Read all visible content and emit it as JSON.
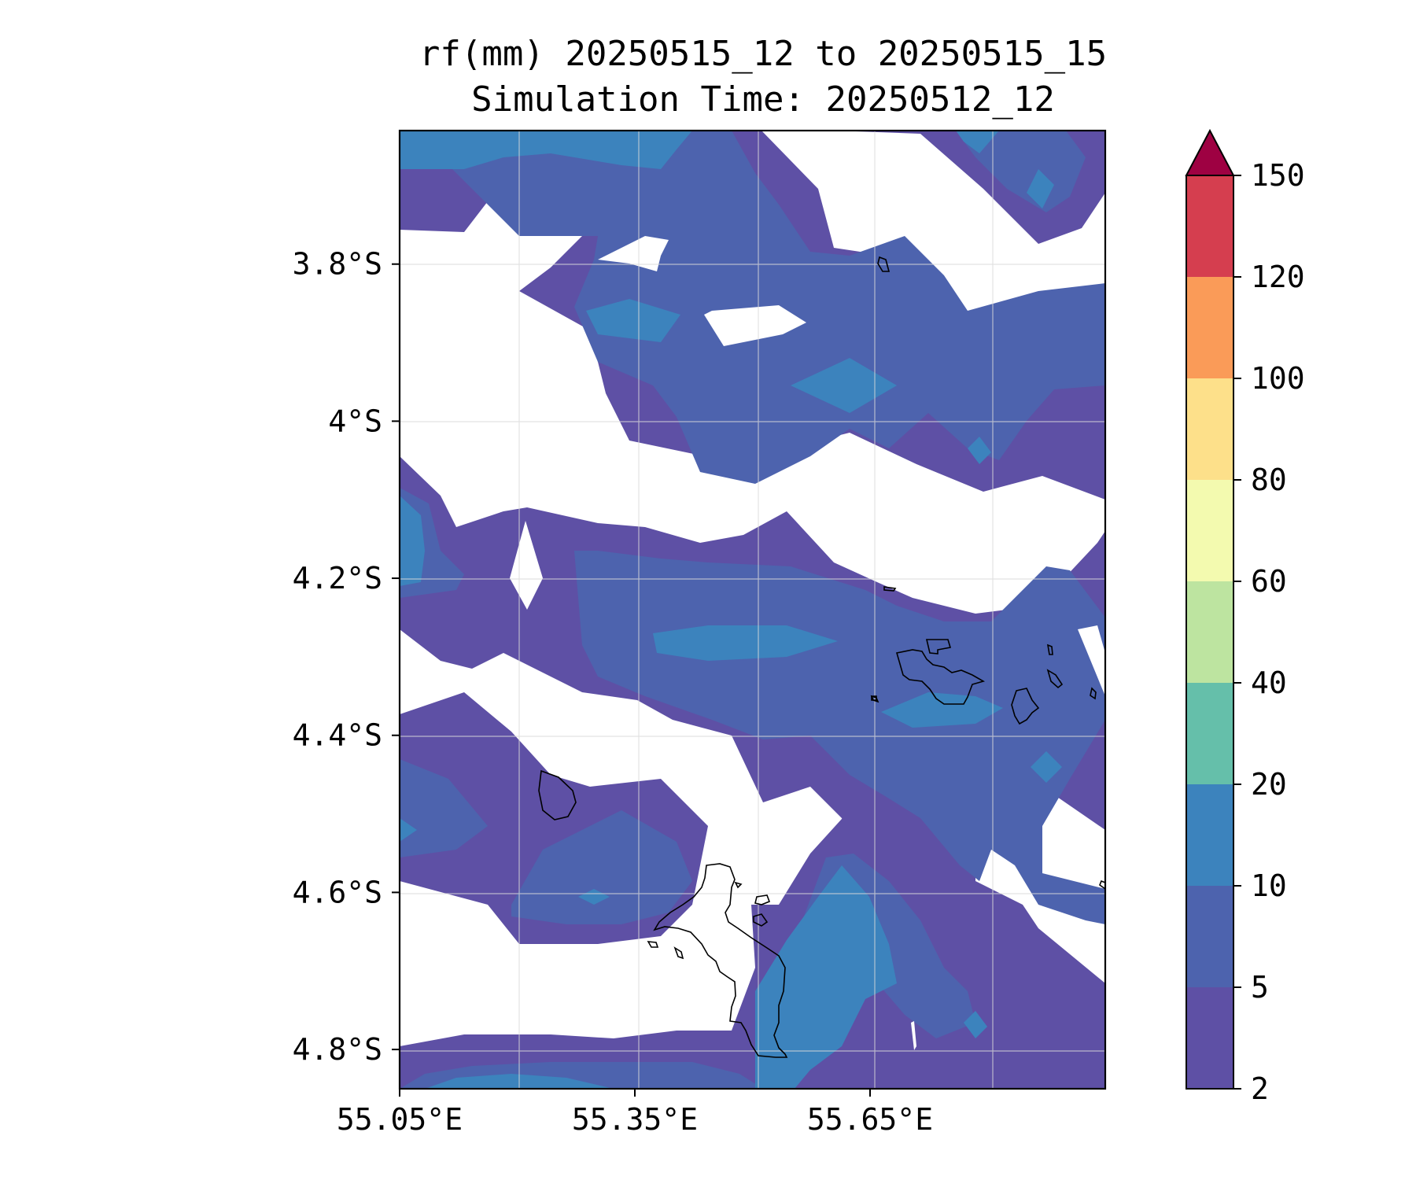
{
  "chart_data": {
    "type": "contourf",
    "title": "rf(mm) 20250515_12 to 20250515_15",
    "subtitle": "Simulation Time: 20250512_12",
    "xlabel": "",
    "ylabel": "",
    "xlim": [
      55.05,
      55.95
    ],
    "ylim": [
      -4.85,
      -3.63
    ],
    "x_ticks": [
      {
        "value": 55.05,
        "label": "55.05°E"
      },
      {
        "value": 55.35,
        "label": "55.35°E"
      },
      {
        "value": 55.65,
        "label": "55.65°E"
      }
    ],
    "y_ticks": [
      {
        "value": -3.8,
        "label": "3.8°S"
      },
      {
        "value": -4.0,
        "label": "4°S"
      },
      {
        "value": -4.2,
        "label": "4.2°S"
      },
      {
        "value": -4.4,
        "label": "4.4°S"
      },
      {
        "value": -4.6,
        "label": "4.6°S"
      },
      {
        "value": -4.8,
        "label": "4.8°S"
      }
    ],
    "grid": true,
    "colorbar": {
      "levels": [
        2,
        5,
        10,
        20,
        40,
        60,
        80,
        100,
        120,
        150
      ],
      "tick_labels": [
        "2",
        "5",
        "10",
        "20",
        "40",
        "60",
        "80",
        "100",
        "120",
        "150"
      ],
      "colors": [
        "#5e50a5",
        "#4d63ae",
        "#3c83bd",
        "#65bfaa",
        "#bde4a0",
        "#f3faaf",
        "#fde08a",
        "#fa9b58",
        "#d53e4f"
      ],
      "extend_color": "#9e0142",
      "extend": "max"
    },
    "colors": {
      "level_2_5": "#5e50a5",
      "level_5_10": "#4d63ae",
      "level_10_20": "#3c83bd"
    }
  }
}
